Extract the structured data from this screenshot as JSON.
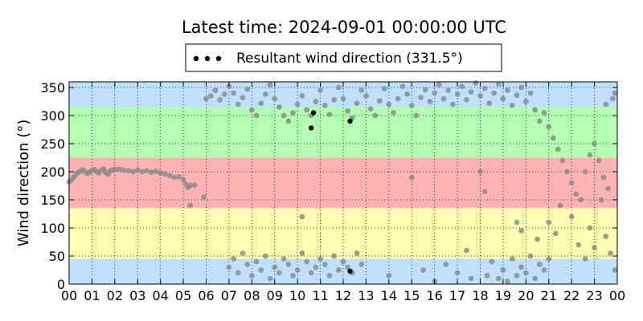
{
  "chart_data": {
    "type": "scatter",
    "title": "Latest time: 2024-09-01 00:00:00 UTC",
    "ylabel": "Wind direction (°)",
    "xlabel": "",
    "x_ticks": [
      "00",
      "01",
      "02",
      "03",
      "04",
      "05",
      "06",
      "07",
      "08",
      "09",
      "10",
      "11",
      "12",
      "13",
      "14",
      "15",
      "16",
      "17",
      "18",
      "19",
      "20",
      "21",
      "22",
      "23",
      "00"
    ],
    "xlim_hours": [
      0,
      24
    ],
    "ylim": [
      0,
      360
    ],
    "y_ticks": [
      0,
      50,
      100,
      150,
      200,
      250,
      300,
      350
    ],
    "grid": true,
    "legend": {
      "label": "Resultant wind direction (331.5°)",
      "placement": "top-center"
    },
    "bands": [
      {
        "from": 0,
        "to": 45,
        "color": "#bfe0ff"
      },
      {
        "from": 45,
        "to": 135,
        "color": "#ffffb3"
      },
      {
        "from": 135,
        "to": 225,
        "color": "#ffb3b3"
      },
      {
        "from": 225,
        "to": 315,
        "color": "#b3ffb3"
      },
      {
        "from": 315,
        "to": 360,
        "color": "#bfe0ff"
      }
    ],
    "point_color": "#8c8c8c",
    "highlight_color": "#000000",
    "series": [
      {
        "points": [
          [
            0.0,
            182
          ],
          [
            0.1,
            185
          ],
          [
            0.2,
            190
          ],
          [
            0.3,
            196
          ],
          [
            0.4,
            199
          ],
          [
            0.5,
            201
          ],
          [
            0.6,
            203
          ],
          [
            0.7,
            200
          ],
          [
            0.8,
            197
          ],
          [
            0.9,
            199
          ],
          [
            1.0,
            202
          ],
          [
            1.1,
            204
          ],
          [
            1.2,
            200
          ],
          [
            1.3,
            198
          ],
          [
            1.4,
            203
          ],
          [
            1.5,
            205
          ],
          [
            1.6,
            199
          ],
          [
            1.7,
            196
          ],
          [
            1.8,
            201
          ],
          [
            1.9,
            203
          ],
          [
            2.0,
            204
          ],
          [
            2.2,
            205
          ],
          [
            2.4,
            203
          ],
          [
            2.6,
            202
          ],
          [
            2.8,
            200
          ],
          [
            3.0,
            203
          ],
          [
            3.2,
            200
          ],
          [
            3.4,
            202
          ],
          [
            3.6,
            199
          ],
          [
            3.8,
            201
          ],
          [
            4.0,
            198
          ],
          [
            4.2,
            196
          ],
          [
            4.4,
            193
          ],
          [
            4.6,
            190
          ],
          [
            4.8,
            191
          ],
          [
            5.0,
            186
          ],
          [
            5.1,
            178
          ],
          [
            5.2,
            172
          ],
          [
            5.3,
            176
          ],
          [
            5.5,
            176
          ],
          [
            5.3,
            140
          ],
          [
            5.9,
            155
          ],
          [
            6.0,
            330
          ],
          [
            6.2,
            335
          ],
          [
            6.4,
            345
          ],
          [
            6.6,
            328
          ],
          [
            6.8,
            338
          ],
          [
            7.0,
            352
          ],
          [
            7.2,
            340
          ],
          [
            7.4,
            320
          ],
          [
            7.6,
            332
          ],
          [
            7.8,
            347
          ],
          [
            8.0,
            310
          ],
          [
            8.2,
            300
          ],
          [
            8.4,
            322
          ],
          [
            8.6,
            338
          ],
          [
            8.8,
            355
          ],
          [
            9.0,
            330
          ],
          [
            9.2,
            315
          ],
          [
            9.4,
            300
          ],
          [
            9.6,
            290
          ],
          [
            9.8,
            305
          ],
          [
            10.0,
            320
          ],
          [
            10.2,
            335
          ],
          [
            10.4,
            310
          ],
          [
            10.6,
            300
          ],
          [
            10.8,
            325
          ],
          [
            11.0,
            345
          ],
          [
            11.2,
            318
          ],
          [
            11.4,
            302
          ],
          [
            11.6,
            328
          ],
          [
            11.8,
            350
          ],
          [
            12.0,
            330
          ],
          [
            12.2,
            308
          ],
          [
            12.4,
            296
          ],
          [
            12.6,
            322
          ],
          [
            12.8,
            345
          ],
          [
            13.0,
            335
          ],
          [
            13.2,
            312
          ],
          [
            13.4,
            300
          ],
          [
            13.6,
            326
          ],
          [
            13.8,
            348
          ],
          [
            14.0,
            320
          ],
          [
            14.2,
            305
          ],
          [
            14.4,
            330
          ],
          [
            14.6,
            352
          ],
          [
            14.8,
            338
          ],
          [
            15.0,
            318
          ],
          [
            15.2,
            300
          ],
          [
            15.4,
            332
          ],
          [
            15.6,
            346
          ],
          [
            15.8,
            325
          ],
          [
            16.0,
            340
          ],
          [
            16.2,
            355
          ],
          [
            16.4,
            330
          ],
          [
            16.6,
            345
          ],
          [
            16.8,
            320
          ],
          [
            17.0,
            338
          ],
          [
            17.2,
            352
          ],
          [
            17.4,
            328
          ],
          [
            17.6,
            342
          ],
          [
            17.8,
            358
          ],
          [
            18.0,
            335
          ],
          [
            18.2,
            348
          ],
          [
            18.4,
            322
          ],
          [
            18.6,
            340
          ],
          [
            18.8,
            356
          ],
          [
            19.0,
            330
          ],
          [
            19.2,
            345
          ],
          [
            19.4,
            318
          ],
          [
            19.6,
            336
          ],
          [
            19.8,
            350
          ],
          [
            20.0,
            325
          ],
          [
            20.2,
            340
          ],
          [
            20.4,
            310
          ],
          [
            20.6,
            290
          ],
          [
            20.8,
            305
          ],
          [
            21.0,
            280
          ],
          [
            21.2,
            260
          ],
          [
            21.4,
            240
          ],
          [
            21.6,
            220
          ],
          [
            21.8,
            200
          ],
          [
            22.0,
            180
          ],
          [
            22.2,
            160
          ],
          [
            22.4,
            150
          ],
          [
            22.6,
            200
          ],
          [
            22.8,
            230
          ],
          [
            23.0,
            250
          ],
          [
            23.2,
            220
          ],
          [
            23.4,
            190
          ],
          [
            23.6,
            170
          ],
          [
            23.8,
            330
          ],
          [
            23.9,
            340
          ],
          [
            23.5,
            320
          ],
          [
            7.0,
            30
          ],
          [
            7.2,
            45
          ],
          [
            7.4,
            20
          ],
          [
            7.6,
            55
          ],
          [
            7.8,
            35
          ],
          [
            8.0,
            15
          ],
          [
            8.2,
            40
          ],
          [
            8.4,
            25
          ],
          [
            8.6,
            50
          ],
          [
            8.8,
            10
          ],
          [
            9.0,
            30
          ],
          [
            9.2,
            20
          ],
          [
            9.4,
            45
          ],
          [
            9.6,
            35
          ],
          [
            9.8,
            15
          ],
          [
            10.0,
            25
          ],
          [
            10.2,
            55
          ],
          [
            10.4,
            40
          ],
          [
            10.6,
            20
          ],
          [
            10.8,
            30
          ],
          [
            11.0,
            45
          ],
          [
            11.2,
            35
          ],
          [
            11.4,
            15
          ],
          [
            11.6,
            50
          ],
          [
            11.8,
            25
          ],
          [
            12.0,
            40
          ],
          [
            12.2,
            30
          ],
          [
            12.4,
            20
          ],
          [
            12.6,
            55
          ],
          [
            12.8,
            35
          ],
          [
            10.2,
            120
          ],
          [
            15.0,
            190
          ],
          [
            17.4,
            60
          ],
          [
            18.0,
            200
          ],
          [
            18.2,
            165
          ],
          [
            18.5,
            40
          ],
          [
            18.8,
            10
          ],
          [
            19.0,
            25
          ],
          [
            19.2,
            5
          ],
          [
            19.4,
            45
          ],
          [
            19.6,
            15
          ],
          [
            19.8,
            30
          ],
          [
            20.0,
            20
          ],
          [
            20.2,
            50
          ],
          [
            20.4,
            10
          ],
          [
            20.6,
            35
          ],
          [
            20.8,
            25
          ],
          [
            21.0,
            45
          ],
          [
            19.6,
            110
          ],
          [
            19.8,
            95
          ],
          [
            20.5,
            80
          ],
          [
            21.0,
            110
          ],
          [
            21.3,
            90
          ],
          [
            21.5,
            140
          ],
          [
            22.0,
            120
          ],
          [
            22.3,
            70
          ],
          [
            22.6,
            45
          ],
          [
            22.8,
            100
          ],
          [
            23.0,
            65
          ],
          [
            23.3,
            150
          ],
          [
            23.5,
            85
          ],
          [
            23.7,
            55
          ],
          [
            23.9,
            25
          ],
          [
            16.5,
            35
          ],
          [
            17.0,
            20
          ],
          [
            17.6,
            10
          ],
          [
            18.3,
            15
          ],
          [
            16.0,
            5
          ],
          [
            15.5,
            25
          ],
          [
            14.0,
            15
          ]
        ]
      },
      {
        "points": [
          [
            10.6,
            278
          ],
          [
            10.7,
            305
          ],
          [
            12.3,
            290
          ],
          [
            12.3,
            23
          ]
        ]
      }
    ]
  }
}
